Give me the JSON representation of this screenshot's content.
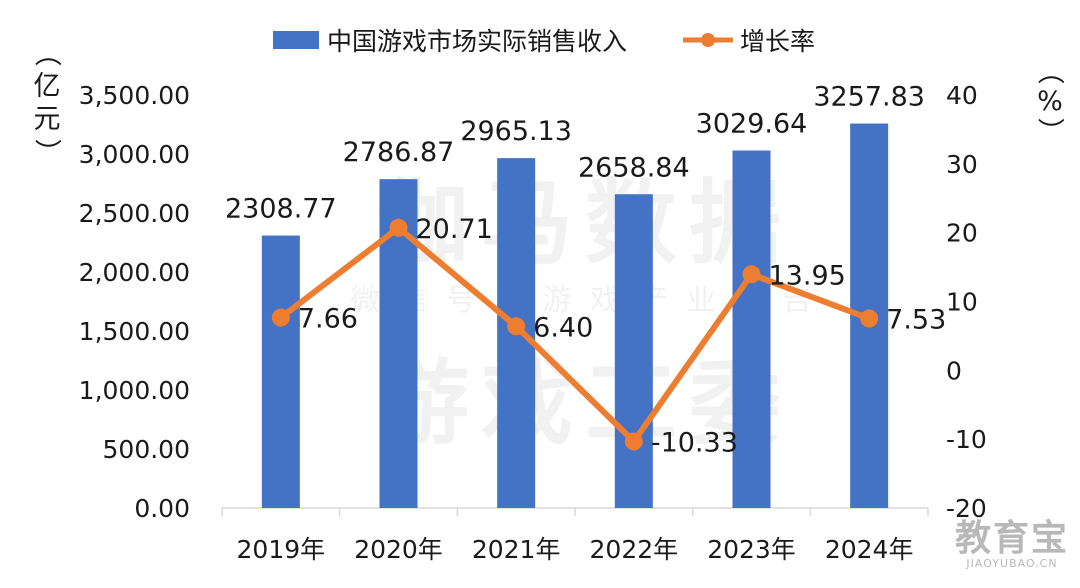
{
  "chart_data": {
    "type": "bar",
    "categories": [
      "2019年",
      "2020年",
      "2021年",
      "2022年",
      "2023年",
      "2024年"
    ],
    "series": [
      {
        "name": "中国游戏市场实际销售收入",
        "type": "bar",
        "axis": "left",
        "values": [
          2308.77,
          2786.87,
          2965.13,
          2658.84,
          3029.64,
          3257.83
        ],
        "labels": [
          "2308.77",
          "2786.87",
          "2965.13",
          "2658.84",
          "3029.64",
          "3257.83"
        ],
        "color": "#4472c4"
      },
      {
        "name": "增长率",
        "type": "line",
        "axis": "right",
        "values": [
          7.66,
          20.71,
          6.4,
          -10.33,
          13.95,
          7.53
        ],
        "labels": [
          "7.66",
          "20.71",
          "6.40",
          "-10.33",
          "13.95",
          "7.53"
        ],
        "color": "#ed7d31"
      }
    ],
    "y_left": {
      "label_chars": [
        "（",
        "亿",
        "元",
        "）"
      ],
      "ylim": [
        0,
        3500
      ],
      "ticks": [
        "3,500.00",
        "3,000.00",
        "2,500.00",
        "2,000.00",
        "1,500.00",
        "1,000.00",
        "500.00",
        "0.00"
      ]
    },
    "y_right": {
      "label_chars": [
        "（",
        "%",
        "）"
      ],
      "ylim": [
        -20,
        40
      ],
      "ticks": [
        "40",
        "30",
        "20",
        "10",
        "0",
        "-10",
        "-20"
      ]
    },
    "legend_position": "top",
    "grid": false
  },
  "watermark": {
    "main": "伽马数据",
    "sub": "微信号：游戏产业报告",
    "bottom": "游戏工委"
  },
  "logo": {
    "main": "教育宝",
    "sub": "JIAOYUBAO.CN"
  },
  "colors": {
    "bar": "#4472c4",
    "line": "#ed7d31",
    "axis": "#d9d9d9"
  }
}
